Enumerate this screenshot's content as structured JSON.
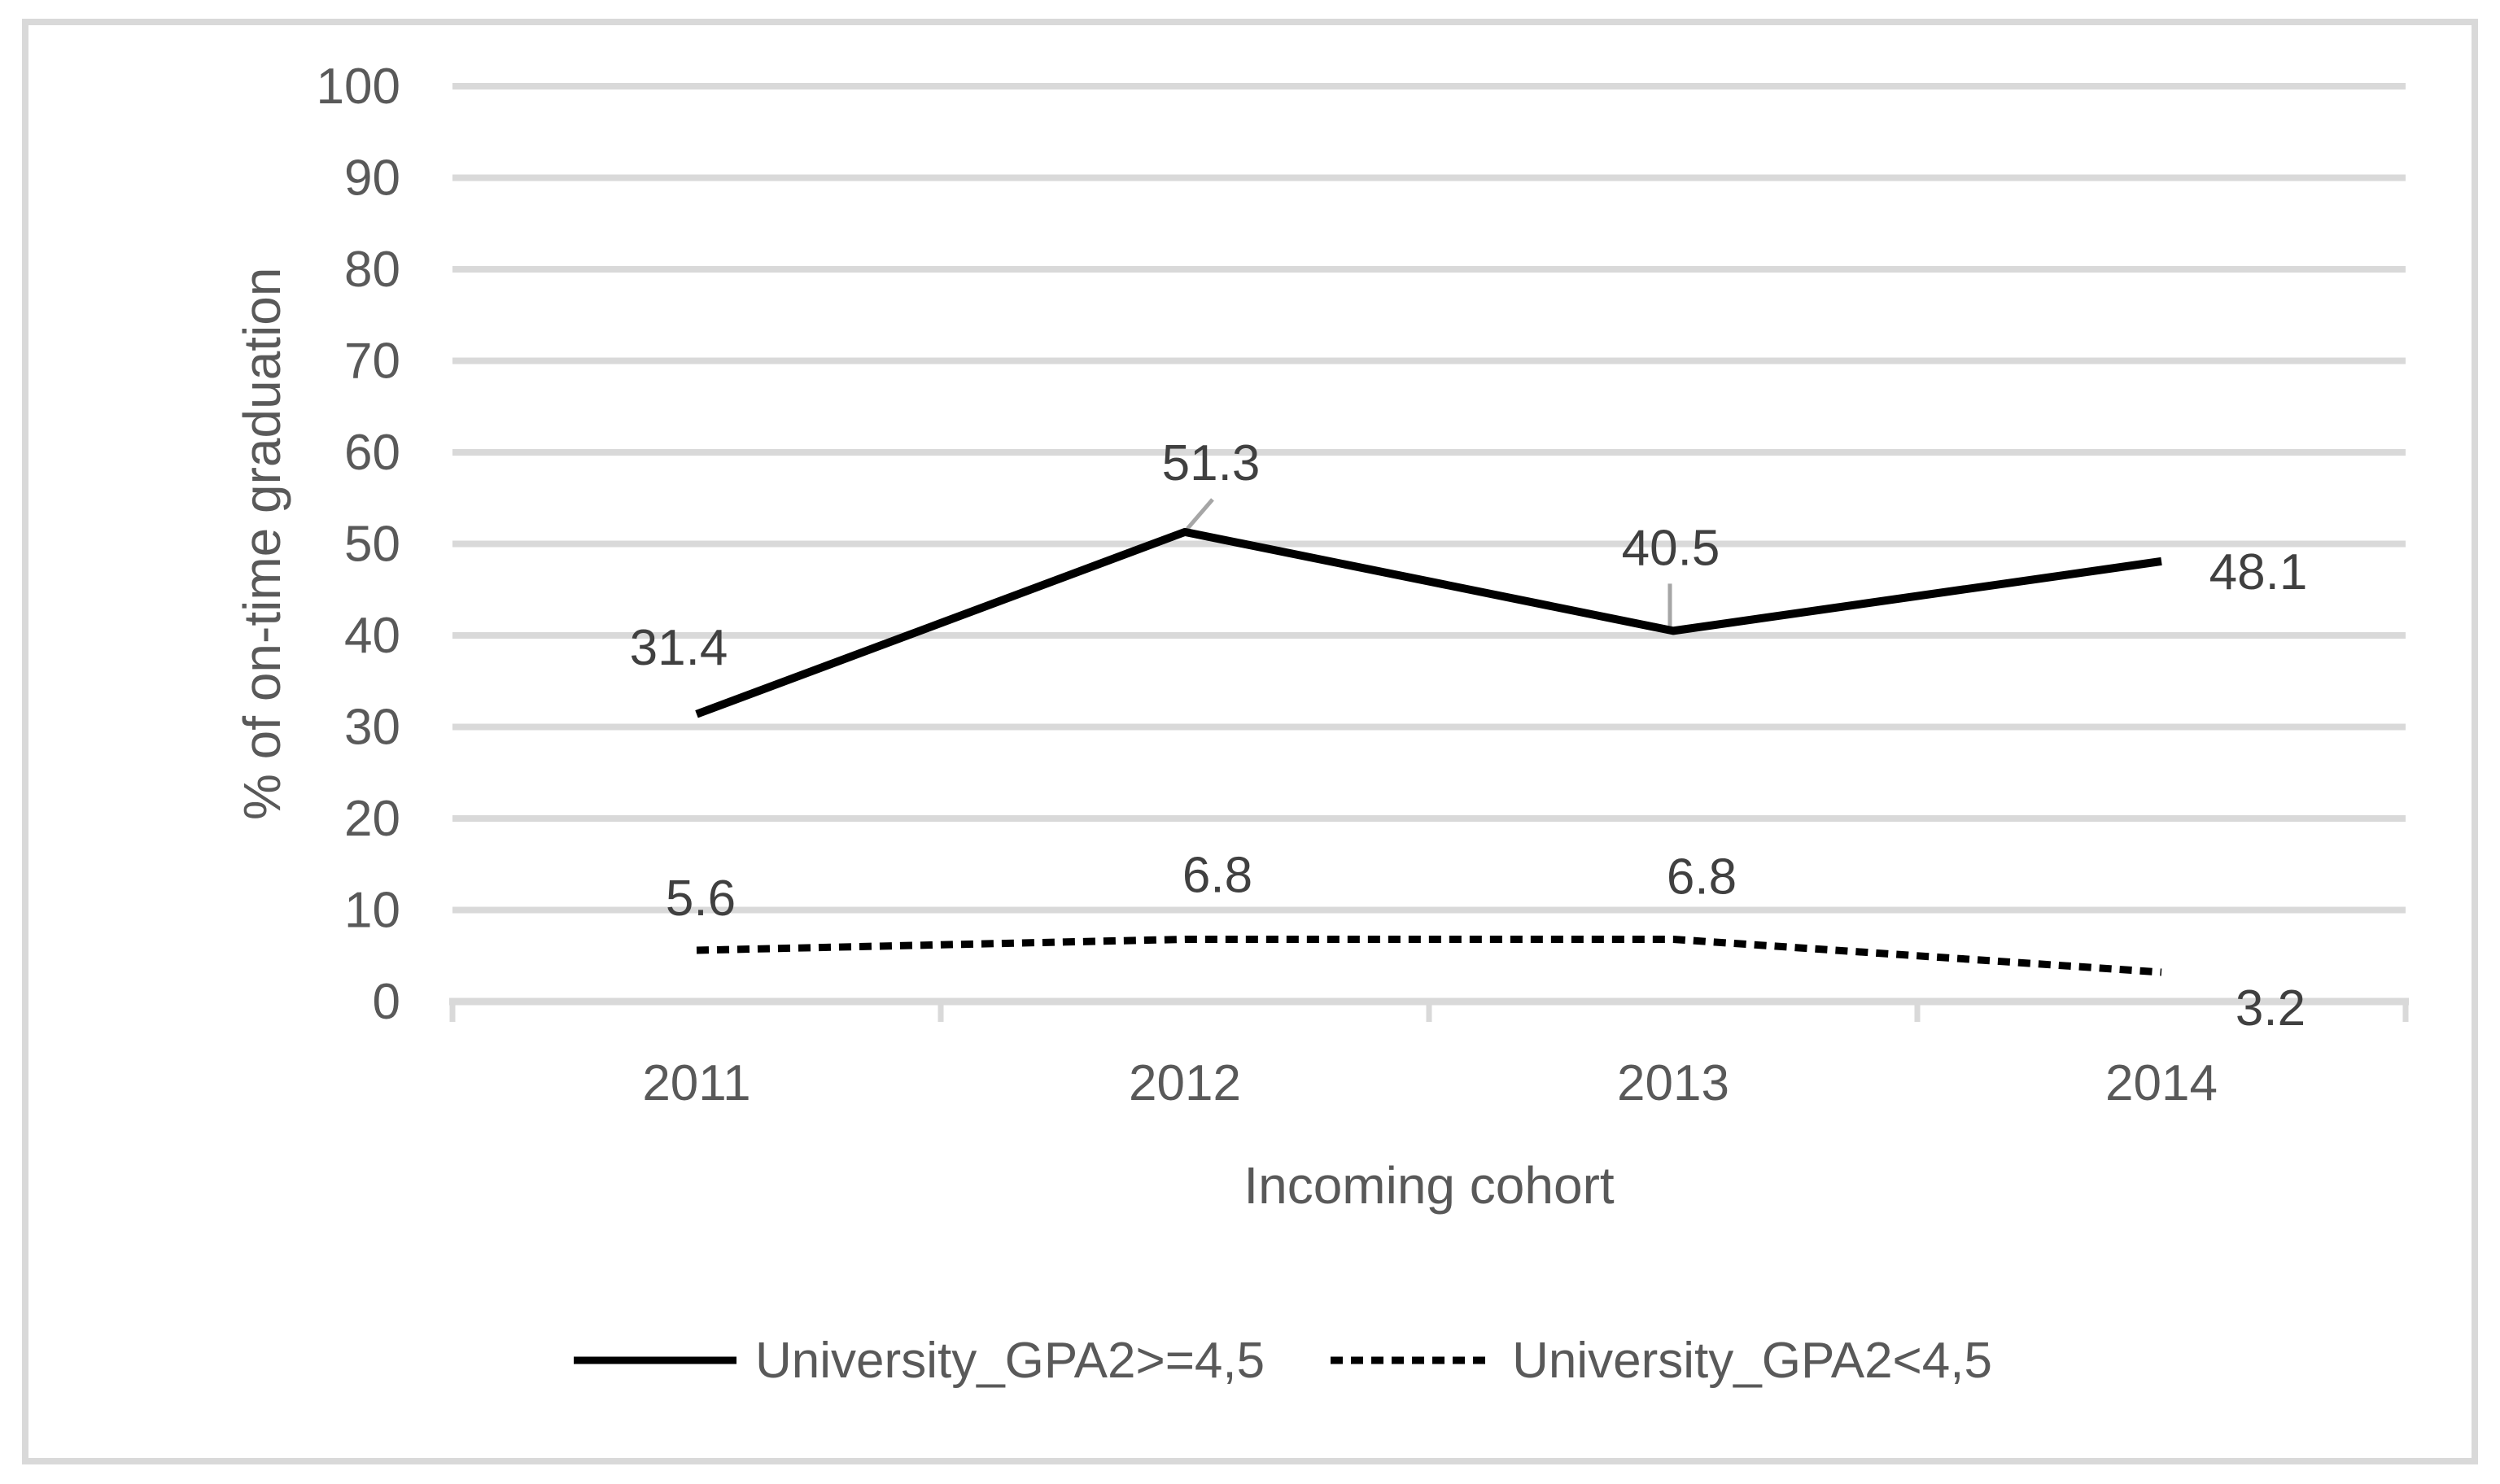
{
  "figure": {
    "background": "#ffffff",
    "border_color": "#d9d9d9"
  },
  "chart_data": {
    "type": "line",
    "title": "",
    "xlabel": "Incoming cohort",
    "ylabel": "% of on-time graduation",
    "categories": [
      "2011",
      "2012",
      "2013",
      "2014"
    ],
    "series": [
      {
        "name": "University_GPA2>=4,5",
        "line_style": "solid",
        "color": "#000000",
        "values": [
          31.4,
          51.3,
          40.5,
          48.1
        ],
        "labels": [
          "31.4",
          "51.3",
          "40.5",
          "48.1"
        ]
      },
      {
        "name": "University_GPA2<4,5",
        "line_style": "dashed",
        "color": "#000000",
        "values": [
          5.6,
          6.8,
          6.8,
          3.2
        ],
        "labels": [
          "5.6",
          "6.8",
          "6.8",
          "3.2"
        ]
      }
    ],
    "y_axis": {
      "min": 0,
      "max": 100,
      "step": 10,
      "tick_labels": [
        "0",
        "10",
        "20",
        "30",
        "40",
        "50",
        "60",
        "70",
        "80",
        "90",
        "100"
      ]
    },
    "grid": true,
    "legend_position": "bottom",
    "colors": {
      "gridline": "#d9d9d9",
      "axis_line": "#d9d9d9",
      "tick_text": "#595959",
      "axis_title_text": "#595959",
      "data_label_text": "#404040",
      "leader_line": "#a6a6a6",
      "legend_text": "#595959"
    }
  }
}
